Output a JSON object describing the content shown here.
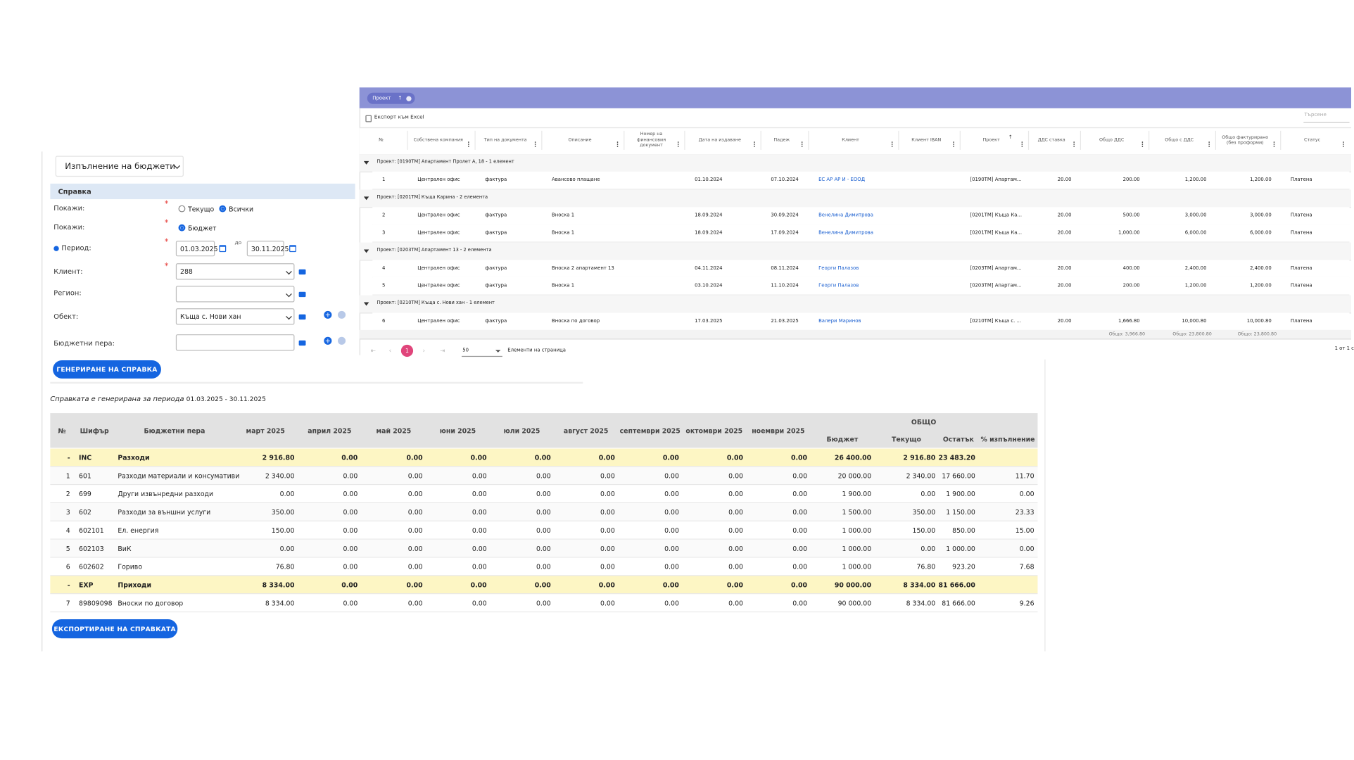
{
  "form": {
    "title": "Изпълнение на бюджети",
    "section": "Справка",
    "show_label": "Покажи:",
    "show_options": [
      {
        "text": "Текущо",
        "checked": false
      },
      {
        "text": "Всички",
        "checked": true
      }
    ],
    "show2_label": "Покажи:",
    "show2_options": [
      {
        "text": "Бюджет",
        "checked": true
      }
    ],
    "period_label": "Период:",
    "period_from": "01.03.2025",
    "period_sep": "до",
    "period_to": "30.11.2025",
    "client_label": "Клиент:",
    "client_value": "288",
    "region_label": "Регион:",
    "object_label": "Обект:",
    "object_value": "Къща с. Нови хан",
    "budget_label": "Бюджетни пера:",
    "generate_button": "ГЕНЕРИРАНЕ НА СПРАВКА"
  },
  "grid": {
    "chip": "Проект",
    "export": "Експорт към Excel",
    "search_placeholder": "Търсене",
    "columns": [
      "№",
      "Собствена компания",
      "Тип на документа",
      "Описание",
      "Номер на финансовия документ",
      "Дата на издаване",
      "Падеж",
      "Клиент",
      "Клиент IBAN",
      "Проект",
      "ДДС ставка",
      "Общо ДДС",
      "Общо с ДДС",
      "Общо фактурирано (без проформи)",
      "Статус"
    ],
    "groups": [
      {
        "title": "Проект: [0190TM] Апартамент Пролет А, 18 - 1 елемент",
        "rows": [
          [
            "1",
            "Централен офис",
            "фактура",
            "Авансово плащане",
            null,
            "01.10.2024",
            "07.10.2024",
            "ЕС АР АР И - ЕООД",
            null,
            "[0190TM] Апартам...",
            "20.00",
            "200.00",
            "1,200.00",
            "1,200.00",
            "Платена"
          ]
        ]
      },
      {
        "title": "Проект: [0201TM] Къща Карина - 2 елемента",
        "rows": [
          [
            "2",
            "Централен офис",
            "фактура",
            "Вноска 1",
            null,
            "18.09.2024",
            "30.09.2024",
            "Венелина Димитрова",
            null,
            "[0201TM] Къща Ка...",
            "20.00",
            "500.00",
            "3,000.00",
            "3,000.00",
            "Платена"
          ],
          [
            "3",
            "Централен офис",
            "фактура",
            "Вноска 1",
            null,
            "18.09.2024",
            "17.09.2024",
            "Венелина Димитрова",
            null,
            "[0201TM] Къща Ка...",
            "20.00",
            "1,000.00",
            "6,000.00",
            "6,000.00",
            "Платена"
          ]
        ]
      },
      {
        "title": "Проект: [0203TM] Апартамент 13 - 2 елемента",
        "rows": [
          [
            "4",
            "Централен офис",
            "фактура",
            "Вноска 2 апартамент 13",
            null,
            "04.11.2024",
            "08.11.2024",
            "Георги Палазов",
            null,
            "[0203TM] Апартам...",
            "20.00",
            "400.00",
            "2,400.00",
            "2,400.00",
            "Платена"
          ],
          [
            "5",
            "Централен офис",
            "фактура",
            "Вноска 1",
            null,
            "03.10.2024",
            "11.10.2024",
            "Георги Палазов",
            null,
            "[0203TM] Апартам...",
            "20.00",
            "200.00",
            "1,200.00",
            "1,200.00",
            "Платена"
          ]
        ]
      },
      {
        "title": "Проект: [0210TM] Къща с. Нови хан - 1 елемент",
        "rows": [
          [
            "6",
            "Централен офис",
            "фактура",
            "Вноска по договор",
            null,
            "17.03.2025",
            "21.03.2025",
            "Валери Маринов",
            null,
            "[0210TM] Къща с. ...",
            "20.00",
            "1,666.80",
            "10,000.80",
            "10,000.80",
            "Платена"
          ]
        ]
      }
    ],
    "totals": [
      null,
      null,
      null,
      null,
      null,
      null,
      null,
      null,
      null,
      null,
      null,
      "Общо: 3,966.80",
      "Общо: 23,800.80",
      "Общо: 23,800.80",
      null
    ],
    "page": "1",
    "page_size": "50",
    "page_size_label": "Елементи на страница",
    "page_info": "1 от 1 с"
  },
  "report": {
    "caption": "Справката е генерирана за периода",
    "period": "01.03.2025 - 30.11.2025",
    "columns": [
      "№",
      "Шифър",
      "Бюджетни пера",
      "март 2025",
      "април 2025",
      "май 2025",
      "юни 2025",
      "юли 2025",
      "август 2025",
      "септември 2025",
      "октомври 2025",
      "ноември 2025"
    ],
    "total_group": "ОБЩО",
    "total_columns": [
      "Бюджет",
      "Текущо",
      "Остатък",
      "% изпълнение"
    ],
    "rows": [
      {
        "highlight": true,
        "cells": [
          "-",
          "INC",
          "Разходи",
          "2 916.80",
          "0.00",
          "0.00",
          "0.00",
          "0.00",
          "0.00",
          "0.00",
          "0.00",
          "0.00",
          "26 400.00",
          "2 916.80",
          "23 483.20",
          null
        ]
      },
      {
        "highlight": false,
        "cells": [
          "1",
          "601",
          "Разходи материали и консумативи",
          "2 340.00",
          "0.00",
          "0.00",
          "0.00",
          "0.00",
          "0.00",
          "0.00",
          "0.00",
          "0.00",
          "20 000.00",
          "2 340.00",
          "17 660.00",
          "11.70"
        ]
      },
      {
        "highlight": false,
        "cells": [
          "2",
          "699",
          "Други извънредни разходи",
          "0.00",
          "0.00",
          "0.00",
          "0.00",
          "0.00",
          "0.00",
          "0.00",
          "0.00",
          "0.00",
          "1 900.00",
          "0.00",
          "1 900.00",
          "0.00"
        ]
      },
      {
        "highlight": false,
        "cells": [
          "3",
          "602",
          "Разходи за външни услуги",
          "350.00",
          "0.00",
          "0.00",
          "0.00",
          "0.00",
          "0.00",
          "0.00",
          "0.00",
          "0.00",
          "1 500.00",
          "350.00",
          "1 150.00",
          "23.33"
        ]
      },
      {
        "highlight": false,
        "cells": [
          "4",
          "602101",
          "Ел. енергия",
          "150.00",
          "0.00",
          "0.00",
          "0.00",
          "0.00",
          "0.00",
          "0.00",
          "0.00",
          "0.00",
          "1 000.00",
          "150.00",
          "850.00",
          "15.00"
        ]
      },
      {
        "highlight": false,
        "cells": [
          "5",
          "602103",
          "ВиК",
          "0.00",
          "0.00",
          "0.00",
          "0.00",
          "0.00",
          "0.00",
          "0.00",
          "0.00",
          "0.00",
          "1 000.00",
          "0.00",
          "1 000.00",
          "0.00"
        ]
      },
      {
        "highlight": false,
        "cells": [
          "6",
          "602602",
          "Гориво",
          "76.80",
          "0.00",
          "0.00",
          "0.00",
          "0.00",
          "0.00",
          "0.00",
          "0.00",
          "0.00",
          "1 000.00",
          "76.80",
          "923.20",
          "7.68"
        ]
      },
      {
        "highlight": true,
        "cells": [
          "-",
          "EXP",
          "Приходи",
          "8 334.00",
          "0.00",
          "0.00",
          "0.00",
          "0.00",
          "0.00",
          "0.00",
          "0.00",
          "0.00",
          "90 000.00",
          "8 334.00",
          "81 666.00",
          null
        ]
      },
      {
        "highlight": false,
        "cells": [
          "7",
          "89809098",
          "Вноски по договор",
          "8 334.00",
          "0.00",
          "0.00",
          "0.00",
          "0.00",
          "0.00",
          "0.00",
          "0.00",
          "0.00",
          "90 000.00",
          "8 334.00",
          "81 666.00",
          "9.26"
        ]
      }
    ],
    "export_button": "ЕКСПОРТИРАНЕ НА СПРАВКАТА"
  }
}
